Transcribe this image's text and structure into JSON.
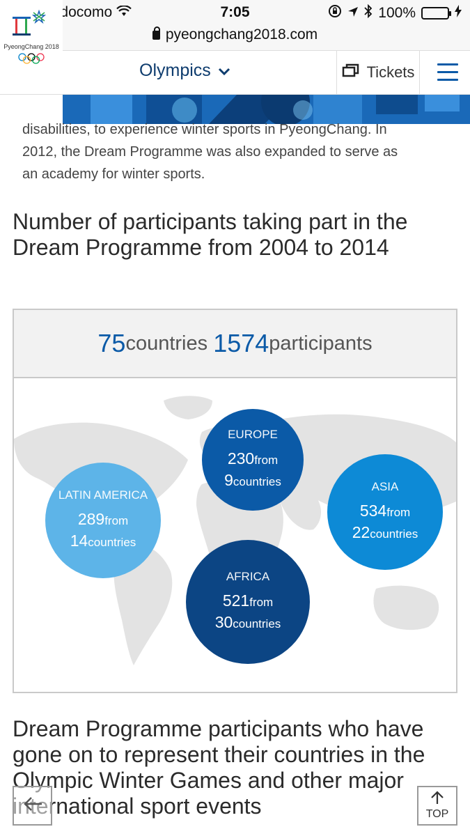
{
  "status_bar": {
    "carrier": "docomo",
    "time": "7:05",
    "battery": "100%"
  },
  "url_bar": {
    "domain": "pyeongchang2018.com"
  },
  "header": {
    "logo_text": "PyeongChang 2018",
    "nav_label": "Olympics",
    "tickets_label": "Tickets",
    "icons": [
      "lock-icon",
      "chevron-down-icon",
      "tickets-icon",
      "menu-icon"
    ]
  },
  "intro": {
    "line1": "disabilities, to experience winter sports in PyeongChang. In",
    "line2": "2012, the Dream Programme was also expanded to serve as",
    "line3": "an academy for winter sports."
  },
  "section1": {
    "heading": "Number of participants taking part in the Dream Programme from 2004 to 2014"
  },
  "infographic": {
    "countries_value": "75",
    "countries_label": "countries",
    "participants_value": "1574",
    "participants_label": "participants",
    "regions": {
      "europe": {
        "name": "EUROPE",
        "participants": "230",
        "from_label": "from",
        "countries": "9",
        "countries_label": "countries",
        "color": "#0b5aa7"
      },
      "latin_america": {
        "name": "LATIN AMERICA",
        "participants": "289",
        "from_label": "from",
        "countries": "14",
        "countries_label": "countries",
        "color": "#5db4e8"
      },
      "asia": {
        "name": "ASIA",
        "participants": "534",
        "from_label": "from",
        "countries": "22",
        "countries_label": "countries",
        "color": "#0d8ad6"
      },
      "africa": {
        "name": "AFRICA",
        "participants": "521",
        "from_label": "from",
        "countries": "30",
        "countries_label": "countries",
        "color": "#0c4584"
      }
    }
  },
  "section2": {
    "heading": "Dream Programme participants who have gone on to represent their countries in the Olympic Winter Games and other major international sport events"
  },
  "floating": {
    "top_label": "TOP"
  }
}
